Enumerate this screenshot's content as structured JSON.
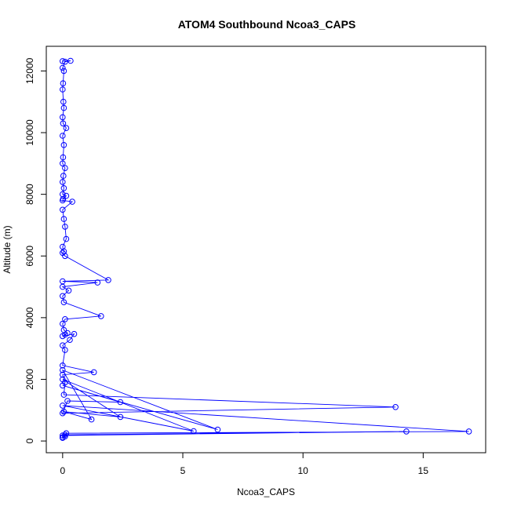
{
  "chart_data": {
    "type": "line",
    "title": "ATOM4 Southbound Ncoa3_CAPS",
    "xlabel": "Ncoa3_CAPS",
    "ylabel": "Altitude (m)",
    "xlim": [
      -0.68,
      17.6
    ],
    "ylim": [
      -380,
      12800
    ],
    "x_ticks": [
      0,
      5,
      10,
      15
    ],
    "y_ticks": [
      0,
      2000,
      4000,
      6000,
      8000,
      10000,
      12000
    ],
    "grid": false,
    "legend": "none",
    "series_color": "#0000ff",
    "marker": "open-circle",
    "x": [
      0,
      0.33,
      0.1,
      0,
      0.05,
      0.02,
      0,
      0.03,
      0.05,
      0,
      0.02,
      0.15,
      0,
      0.05,
      0.02,
      0,
      0.1,
      0.03,
      0,
      0.05,
      0,
      0.15,
      0.02,
      0,
      0.4,
      0,
      0.05,
      0.1,
      0.15,
      0,
      0.05,
      0,
      0.1,
      1.9,
      0,
      1.45,
      0,
      0.25,
      0,
      0.05,
      1.6,
      0.1,
      0,
      0.05,
      0.2,
      0.1,
      0,
      0.48,
      0.3,
      0,
      0.1,
      0,
      1.3,
      0,
      0.1,
      0.05,
      13.85,
      0,
      0.2,
      2.4,
      0,
      6.45,
      0,
      1.2,
      0.05,
      2.4,
      0,
      5.45,
      0,
      16.9,
      0.15,
      0.1,
      14.3,
      0,
      0.1,
      0,
      0
    ],
    "y": [
      12320,
      12330,
      12300,
      12100,
      12000,
      11600,
      11400,
      11000,
      10800,
      10500,
      10300,
      10150,
      9900,
      9600,
      9200,
      9000,
      8850,
      8600,
      8400,
      8200,
      8000,
      7950,
      7850,
      7800,
      7760,
      7500,
      7200,
      6950,
      6550,
      6300,
      6150,
      6100,
      6000,
      5220,
      5180,
      5140,
      5000,
      4880,
      4700,
      4500,
      4050,
      3950,
      3800,
      3600,
      3500,
      3450,
      3400,
      3470,
      3280,
      3100,
      2950,
      2450,
      2230,
      2150,
      1900,
      1500,
      1100,
      900,
      1300,
      1260,
      1800,
      370,
      2300,
      700,
      950,
      780,
      2000,
      320,
      1150,
      310,
      250,
      200,
      310,
      180,
      150,
      120,
      100
    ]
  }
}
